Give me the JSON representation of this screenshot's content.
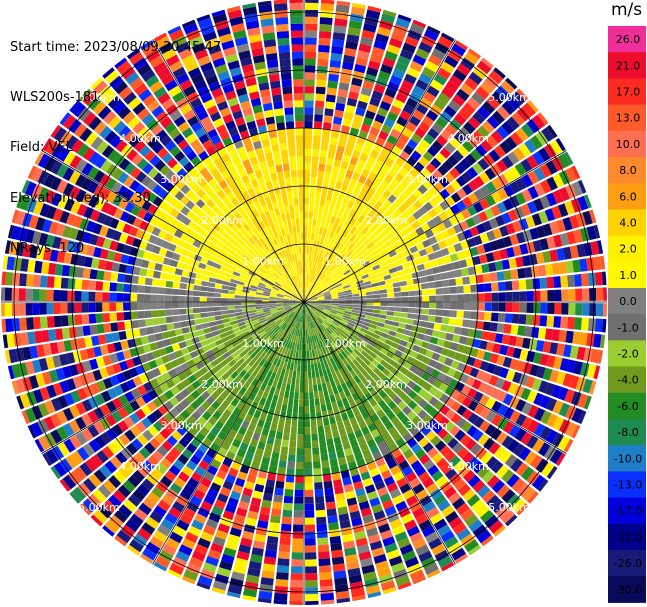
{
  "header": {
    "start_time": "Start time: 2023/08/09 20:45:47",
    "instrument": "WLS200s-181",
    "field": "Field: VEL",
    "elevation": "Elevation(deg): 35.30",
    "nrays": "NRays: 120"
  },
  "colorbar": {
    "unit": "m/s",
    "ticks": [
      "26.0",
      "21.0",
      "17.0",
      "13.0",
      "10.0",
      "8.0",
      "6.0",
      "4.0",
      "2.0",
      "1.0",
      "0.0",
      "-1.0",
      "-2.0",
      "-4.0",
      "-6.0",
      "-8.0",
      "-10.0",
      "-13.0",
      "-17.0",
      "-21.0",
      "-26.0",
      "-30.0"
    ],
    "colors": [
      "#f02e9a",
      "#ee0c2c",
      "#ff2a20",
      "#ff5a2a",
      "#ff6f52",
      "#ff8a2e",
      "#ff9e10",
      "#ffd200",
      "#fff200",
      "#fff700",
      "#808080",
      "#707070",
      "#9acd32",
      "#6e9a1e",
      "#228b22",
      "#1e8c50",
      "#1e7fc8",
      "#0a30ff",
      "#0000dd",
      "#00008b",
      "#1a1a7a",
      "#0a0a5a"
    ]
  },
  "chart_data": {
    "type": "heatmap",
    "projection": "polar-ppi",
    "field": "VEL",
    "units": "m/s",
    "elevation_deg": 35.3,
    "nrays": 120,
    "range_rings_km": [
      1.0,
      2.0,
      3.0,
      4.0,
      5.0
    ],
    "ring_labels": [
      "1.00km",
      "2.00km",
      "3.00km",
      "4.00km",
      "5.00km"
    ],
    "value_range": [
      -30,
      26
    ],
    "pattern": {
      "north_half_inner": "positive, mostly 2 to 6 m/s (yellow/orange)",
      "south_half_inner": "negative, mostly -2 to -6 m/s (green), with patches near -8 m/s",
      "near_zero_band": "grey along the west-east line",
      "outer_gates_beyond_about_3km": "noise spanning the full scale"
    }
  }
}
